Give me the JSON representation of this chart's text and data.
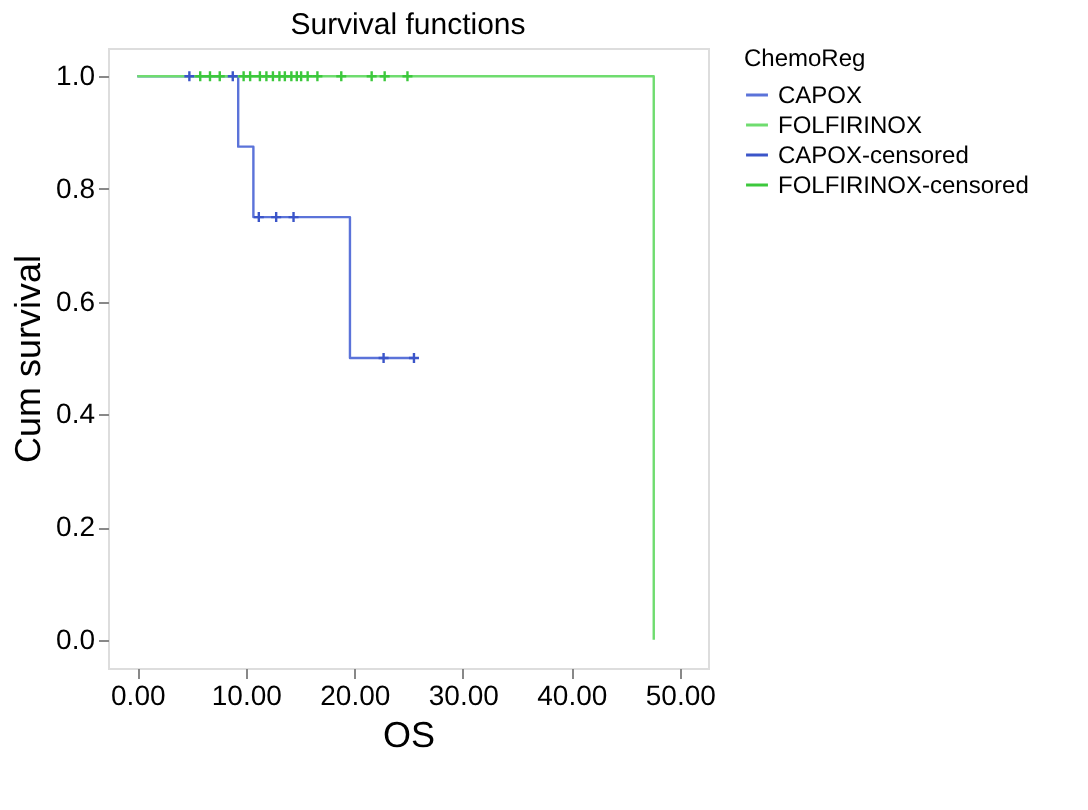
{
  "chart_data": {
    "type": "step",
    "title": "Survival functions",
    "xlabel": "OS",
    "ylabel": "Cum survival",
    "legend_title": "ChemoReg",
    "legend": "top right",
    "grid": false,
    "xlim": [
      -2.7,
      52.6
    ],
    "xticks": [
      {
        "value": 0,
        "label": "0.00"
      },
      {
        "value": 10,
        "label": "10.00"
      },
      {
        "value": 20,
        "label": "20.00"
      },
      {
        "value": 30,
        "label": "30.00"
      },
      {
        "value": 40,
        "label": "40.00"
      },
      {
        "value": 50,
        "label": "50.00"
      }
    ],
    "ylim": [
      -0.05,
      1.05
    ],
    "yticks": [
      {
        "value": 0,
        "label": "0.0"
      },
      {
        "value": 0.2,
        "label": "0.2"
      },
      {
        "value": 0.4,
        "label": "0.4"
      },
      {
        "value": 0.6,
        "label": "0.6"
      },
      {
        "value": 0.8,
        "label": "0.8"
      },
      {
        "value": 1,
        "label": "1.0"
      }
    ],
    "series": [
      {
        "name": "CAPOX",
        "color": "#5b73d9",
        "x": [
          0,
          9.3,
          10.7,
          19.6,
          25.5
        ],
        "values": [
          1,
          0.875,
          0.75,
          0.5,
          0.5
        ]
      },
      {
        "name": "FOLFIRINOX",
        "color": "#6fdc6f",
        "x": [
          0,
          47.6,
          47.6
        ],
        "values": [
          1,
          0,
          0
        ]
      },
      {
        "name": "CAPOX-censored",
        "type": "scatter",
        "marker": "cross",
        "color": "#3b55c9",
        "x": [
          4.8,
          8.8,
          11.2,
          12.8,
          14.4,
          22.7,
          25.5
        ],
        "values": [
          1,
          1,
          0.75,
          0.75,
          0.75,
          0.5,
          0.5
        ]
      },
      {
        "name": "FOLFIRINOX-censored",
        "type": "scatter",
        "marker": "cross",
        "color": "#3cc83c",
        "x": [
          5.8,
          6.7,
          7.6,
          9.8,
          10.4,
          11.3,
          11.9,
          12.5,
          13.1,
          13.6,
          14.2,
          14.7,
          15.1,
          15.7,
          16.6,
          18.8,
          21.6,
          22.8,
          24.9
        ],
        "values": [
          1,
          1,
          1,
          1,
          1,
          1,
          1,
          1,
          1,
          1,
          1,
          1,
          1,
          1,
          1,
          1,
          1,
          1,
          1
        ]
      }
    ]
  }
}
